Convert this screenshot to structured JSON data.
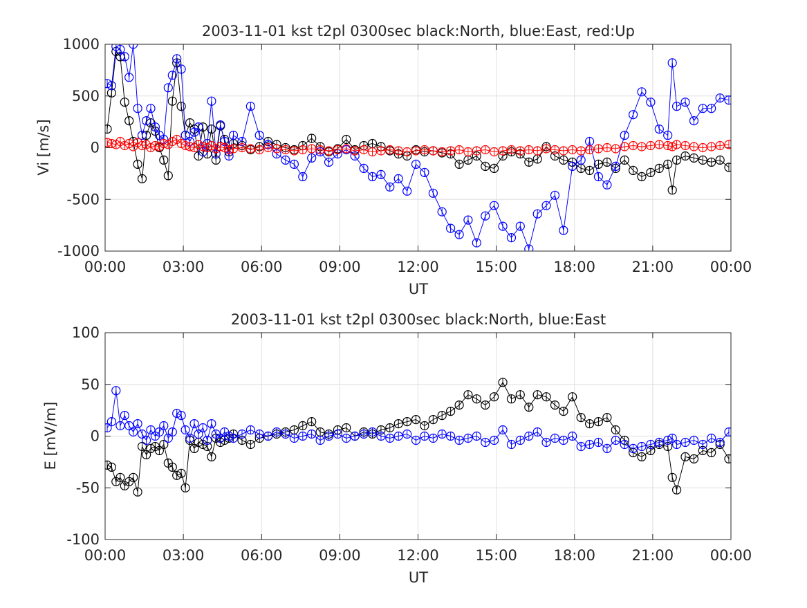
{
  "figure": {
    "background": "#ffffff",
    "axis_color": "#262626",
    "grid_color": "#dfdfdf"
  },
  "chart_data": [
    {
      "type": "scatter",
      "title": "2003-11-01 kst t2pl 0300sec black:North, blue:East, red:Up",
      "xlabel": "UT",
      "ylabel": "Vi [m/s]",
      "x_unit": "hours UT",
      "xlim": [
        0,
        24
      ],
      "ylim": [
        -1000,
        1000
      ],
      "grid": true,
      "x_ticks": [
        0,
        3,
        6,
        9,
        12,
        15,
        18,
        21,
        24
      ],
      "x_tick_labels": [
        "00:00",
        "03:00",
        "06:00",
        "09:00",
        "12:00",
        "15:00",
        "18:00",
        "21:00",
        "00:00"
      ],
      "y_ticks": [
        1000,
        500,
        0,
        -500,
        -1000
      ],
      "y_tick_labels": [
        "1000",
        "500",
        "0",
        "-500",
        "-1000"
      ],
      "marker": "open-circle",
      "error_bars": true,
      "series": [
        {
          "name": "North",
          "color": "#000000",
          "x": [
            0.08,
            0.25,
            0.42,
            0.58,
            0.75,
            0.92,
            1.08,
            1.25,
            1.42,
            1.58,
            1.75,
            1.92,
            2.08,
            2.25,
            2.42,
            2.58,
            2.75,
            2.92,
            3.08,
            3.25,
            3.42,
            3.58,
            3.75,
            3.92,
            4.08,
            4.25,
            4.42,
            4.58,
            4.75,
            4.92,
            5.25,
            5.58,
            5.92,
            6.25,
            6.58,
            6.92,
            7.25,
            7.58,
            7.92,
            8.25,
            8.58,
            8.92,
            9.25,
            9.58,
            9.92,
            10.25,
            10.58,
            10.92,
            11.25,
            11.58,
            11.92,
            12.25,
            12.58,
            12.92,
            13.25,
            13.58,
            13.92,
            14.25,
            14.58,
            14.92,
            15.25,
            15.58,
            15.92,
            16.25,
            16.58,
            16.92,
            17.25,
            17.58,
            17.92,
            18.25,
            18.58,
            18.92,
            19.25,
            19.58,
            19.92,
            20.25,
            20.58,
            20.92,
            21.25,
            21.58,
            21.75,
            21.92,
            22.25,
            22.58,
            22.92,
            23.25,
            23.58,
            23.92
          ],
          "y": [
            180,
            530,
            930,
            880,
            440,
            260,
            60,
            -160,
            -300,
            120,
            240,
            160,
            0,
            -120,
            -270,
            450,
            820,
            400,
            120,
            240,
            180,
            -80,
            200,
            -60,
            180,
            -120,
            210,
            80,
            -40,
            40,
            20,
            -20,
            10,
            60,
            30,
            0,
            -20,
            20,
            90,
            10,
            -40,
            -10,
            80,
            -20,
            20,
            40,
            10,
            -30,
            -60,
            -80,
            -20,
            -40,
            -30,
            -50,
            -60,
            -160,
            -120,
            -80,
            -180,
            -200,
            -80,
            -40,
            -60,
            -140,
            -110,
            10,
            -80,
            -120,
            -140,
            -200,
            -220,
            -160,
            -140,
            -200,
            -120,
            -220,
            -280,
            -240,
            -200,
            -160,
            -410,
            -120,
            -80,
            -100,
            -120,
            -140,
            -120,
            -190
          ]
        },
        {
          "name": "East",
          "color": "#0000ff",
          "x": [
            0.08,
            0.25,
            0.42,
            0.58,
            0.75,
            0.92,
            1.08,
            1.25,
            1.42,
            1.58,
            1.75,
            1.92,
            2.08,
            2.25,
            2.42,
            2.58,
            2.75,
            2.92,
            3.08,
            3.25,
            3.42,
            3.58,
            3.75,
            3.92,
            4.08,
            4.25,
            4.42,
            4.58,
            4.75,
            4.92,
            5.25,
            5.58,
            5.92,
            6.25,
            6.58,
            6.92,
            7.25,
            7.58,
            7.92,
            8.25,
            8.58,
            8.92,
            9.25,
            9.58,
            9.92,
            10.25,
            10.58,
            10.92,
            11.25,
            11.58,
            11.92,
            12.25,
            12.58,
            12.92,
            13.25,
            13.58,
            13.92,
            14.25,
            14.58,
            14.92,
            15.25,
            15.58,
            15.92,
            16.25,
            16.58,
            16.92,
            17.25,
            17.58,
            17.92,
            18.25,
            18.58,
            18.92,
            19.25,
            19.58,
            19.92,
            20.25,
            20.58,
            20.92,
            21.25,
            21.58,
            21.75,
            21.92,
            22.25,
            22.58,
            22.92,
            23.25,
            23.58,
            23.92
          ],
          "y": [
            620,
            600,
            980,
            950,
            880,
            680,
            1000,
            380,
            120,
            260,
            380,
            200,
            120,
            80,
            580,
            700,
            860,
            760,
            120,
            60,
            150,
            200,
            -40,
            40,
            450,
            -60,
            220,
            60,
            -80,
            120,
            60,
            400,
            120,
            30,
            -60,
            -120,
            -160,
            -280,
            -100,
            -40,
            -140,
            -60,
            -20,
            -80,
            -200,
            -280,
            -260,
            -380,
            -300,
            -420,
            -160,
            -240,
            -440,
            -620,
            -780,
            -840,
            -700,
            -920,
            -660,
            -560,
            -760,
            -870,
            -760,
            -980,
            -640,
            -560,
            -460,
            -800,
            -180,
            -120,
            60,
            -280,
            -360,
            -180,
            120,
            320,
            540,
            440,
            180,
            120,
            820,
            400,
            440,
            260,
            380,
            380,
            480,
            460
          ]
        },
        {
          "name": "Up",
          "color": "#ff0000",
          "x": [
            0.08,
            0.25,
            0.42,
            0.58,
            0.75,
            0.92,
            1.08,
            1.25,
            1.42,
            1.58,
            1.75,
            1.92,
            2.08,
            2.25,
            2.42,
            2.58,
            2.75,
            2.92,
            3.08,
            3.25,
            3.42,
            3.58,
            3.75,
            3.92,
            4.08,
            4.25,
            4.42,
            4.58,
            4.75,
            4.92,
            5.25,
            5.58,
            5.92,
            6.25,
            6.58,
            6.92,
            7.25,
            7.58,
            7.92,
            8.25,
            8.58,
            8.92,
            9.25,
            9.58,
            9.92,
            10.25,
            10.58,
            10.92,
            11.25,
            11.58,
            11.92,
            12.25,
            12.58,
            12.92,
            13.25,
            13.58,
            13.92,
            14.25,
            14.58,
            14.92,
            15.25,
            15.58,
            15.92,
            16.25,
            16.58,
            16.92,
            17.25,
            17.58,
            17.92,
            18.25,
            18.58,
            18.92,
            19.25,
            19.58,
            19.92,
            20.25,
            20.58,
            20.92,
            21.25,
            21.58,
            21.75,
            21.92,
            22.25,
            22.58,
            22.92,
            23.25,
            23.58,
            23.92
          ],
          "y": [
            50,
            40,
            30,
            60,
            20,
            40,
            10,
            50,
            20,
            30,
            0,
            20,
            10,
            40,
            30,
            60,
            80,
            40,
            20,
            10,
            0,
            30,
            10,
            0,
            20,
            -10,
            10,
            0,
            -20,
            -10,
            0,
            -10,
            -20,
            0,
            -10,
            -20,
            -30,
            -20,
            -10,
            -20,
            -30,
            -20,
            -10,
            -30,
            -20,
            -40,
            -30,
            -20,
            -30,
            -40,
            -30,
            -20,
            -30,
            -40,
            -30,
            -20,
            -40,
            -30,
            -20,
            -40,
            -30,
            -20,
            -30,
            -20,
            -30,
            -10,
            -20,
            -30,
            -20,
            -30,
            -20,
            -10,
            0,
            -10,
            10,
            20,
            10,
            20,
            30,
            20,
            10,
            30,
            20,
            10,
            0,
            10,
            20,
            30
          ]
        }
      ]
    },
    {
      "type": "scatter",
      "title": "2003-11-01 kst t2pl 0300sec black:North, blue:East",
      "xlabel": "UT",
      "ylabel": "E [mV/m]",
      "x_unit": "hours UT",
      "xlim": [
        0,
        24
      ],
      "ylim": [
        -100,
        100
      ],
      "grid": true,
      "x_ticks": [
        0,
        3,
        6,
        9,
        12,
        15,
        18,
        21,
        24
      ],
      "x_tick_labels": [
        "00:00",
        "03:00",
        "06:00",
        "09:00",
        "12:00",
        "15:00",
        "18:00",
        "21:00",
        "00:00"
      ],
      "y_ticks": [
        100,
        50,
        0,
        -50,
        -100
      ],
      "y_tick_labels": [
        "100",
        "50",
        "0",
        "-50",
        "-100"
      ],
      "marker": "open-circle",
      "error_bars": true,
      "series": [
        {
          "name": "North",
          "color": "#000000",
          "x": [
            0.08,
            0.25,
            0.42,
            0.58,
            0.75,
            0.92,
            1.08,
            1.25,
            1.42,
            1.58,
            1.75,
            1.92,
            2.08,
            2.25,
            2.42,
            2.58,
            2.75,
            2.92,
            3.08,
            3.25,
            3.42,
            3.58,
            3.75,
            3.92,
            4.08,
            4.25,
            4.42,
            4.58,
            4.75,
            4.92,
            5.25,
            5.58,
            5.92,
            6.25,
            6.58,
            6.92,
            7.25,
            7.58,
            7.92,
            8.25,
            8.58,
            8.92,
            9.25,
            9.58,
            9.92,
            10.25,
            10.58,
            10.92,
            11.25,
            11.58,
            11.92,
            12.25,
            12.58,
            12.92,
            13.25,
            13.58,
            13.92,
            14.25,
            14.58,
            14.92,
            15.25,
            15.58,
            15.92,
            16.25,
            16.58,
            16.92,
            17.25,
            17.58,
            17.92,
            18.25,
            18.58,
            18.92,
            19.25,
            19.58,
            19.92,
            20.25,
            20.58,
            20.92,
            21.25,
            21.58,
            21.75,
            21.92,
            22.25,
            22.58,
            22.92,
            23.25,
            23.58,
            23.92
          ],
          "y": [
            -28,
            -30,
            -44,
            -40,
            -48,
            -44,
            -40,
            -54,
            -10,
            -18,
            -12,
            -10,
            -14,
            -8,
            -26,
            -30,
            -38,
            -36,
            -50,
            -4,
            -12,
            -6,
            -8,
            -10,
            -20,
            -2,
            -6,
            -4,
            -2,
            2,
            -4,
            -8,
            -2,
            0,
            2,
            4,
            6,
            10,
            14,
            4,
            2,
            6,
            8,
            0,
            4,
            2,
            6,
            8,
            12,
            14,
            16,
            10,
            16,
            20,
            24,
            30,
            40,
            36,
            30,
            38,
            52,
            36,
            40,
            28,
            40,
            38,
            30,
            24,
            38,
            18,
            12,
            14,
            18,
            6,
            -4,
            -16,
            -20,
            -14,
            -8,
            -10,
            -40,
            -52,
            -20,
            -22,
            -14,
            -16,
            -8,
            -22
          ]
        },
        {
          "name": "East",
          "color": "#0000ff",
          "x": [
            0.08,
            0.25,
            0.42,
            0.58,
            0.75,
            0.92,
            1.08,
            1.25,
            1.42,
            1.58,
            1.75,
            1.92,
            2.08,
            2.25,
            2.42,
            2.58,
            2.75,
            2.92,
            3.08,
            3.25,
            3.42,
            3.58,
            3.75,
            3.92,
            4.08,
            4.25,
            4.42,
            4.58,
            4.75,
            4.92,
            5.25,
            5.58,
            5.92,
            6.25,
            6.58,
            6.92,
            7.25,
            7.58,
            7.92,
            8.25,
            8.58,
            8.92,
            9.25,
            9.58,
            9.92,
            10.25,
            10.58,
            10.92,
            11.25,
            11.58,
            11.92,
            12.25,
            12.58,
            12.92,
            13.25,
            13.58,
            13.92,
            14.25,
            14.58,
            14.92,
            15.25,
            15.58,
            15.92,
            16.25,
            16.58,
            16.92,
            17.25,
            17.58,
            17.92,
            18.25,
            18.58,
            18.92,
            19.25,
            19.58,
            19.92,
            20.25,
            20.58,
            20.92,
            21.25,
            21.58,
            21.75,
            21.92,
            22.25,
            22.58,
            22.92,
            23.25,
            23.58,
            23.92
          ],
          "y": [
            8,
            14,
            44,
            10,
            20,
            10,
            4,
            12,
            2,
            -4,
            6,
            0,
            4,
            10,
            -2,
            4,
            22,
            20,
            6,
            -2,
            12,
            2,
            8,
            -4,
            12,
            2,
            -2,
            4,
            0,
            -2,
            2,
            6,
            2,
            0,
            4,
            2,
            -2,
            0,
            2,
            -4,
            0,
            2,
            -2,
            0,
            2,
            4,
            0,
            -2,
            0,
            2,
            -4,
            0,
            -2,
            2,
            0,
            -4,
            -2,
            0,
            -6,
            -4,
            6,
            -8,
            -4,
            0,
            4,
            -6,
            -2,
            -4,
            0,
            -10,
            -8,
            -6,
            -12,
            -4,
            -8,
            -12,
            -10,
            -8,
            -6,
            -4,
            -2,
            -8,
            -6,
            -4,
            -8,
            -2,
            -6,
            4
          ]
        }
      ]
    }
  ]
}
